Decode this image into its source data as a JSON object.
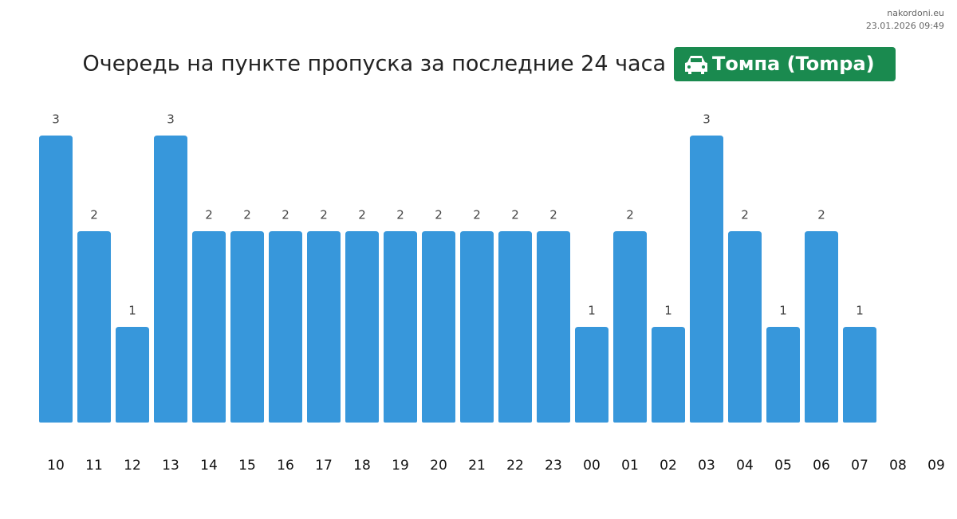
{
  "chart_data": {
    "type": "bar",
    "site": "nakordoni.eu",
    "timestamp": "23.01.2026 09:49",
    "title": "Очередь на пункте пропуска за последние 24 часа",
    "badge": "Томпа (Tompa)",
    "categories": [
      "10",
      "11",
      "12",
      "13",
      "14",
      "15",
      "16",
      "17",
      "18",
      "19",
      "20",
      "21",
      "22",
      "23",
      "00",
      "01",
      "02",
      "03",
      "04",
      "05",
      "06",
      "07",
      "08",
      "09"
    ],
    "values": [
      3,
      2,
      1,
      3,
      2,
      2,
      2,
      2,
      2,
      2,
      2,
      2,
      2,
      2,
      1,
      2,
      1,
      3,
      2,
      1,
      2,
      1,
      null,
      null
    ],
    "color": "#3797db",
    "badge_color": "#1a8a4f",
    "ylim": [
      0,
      3
    ]
  }
}
